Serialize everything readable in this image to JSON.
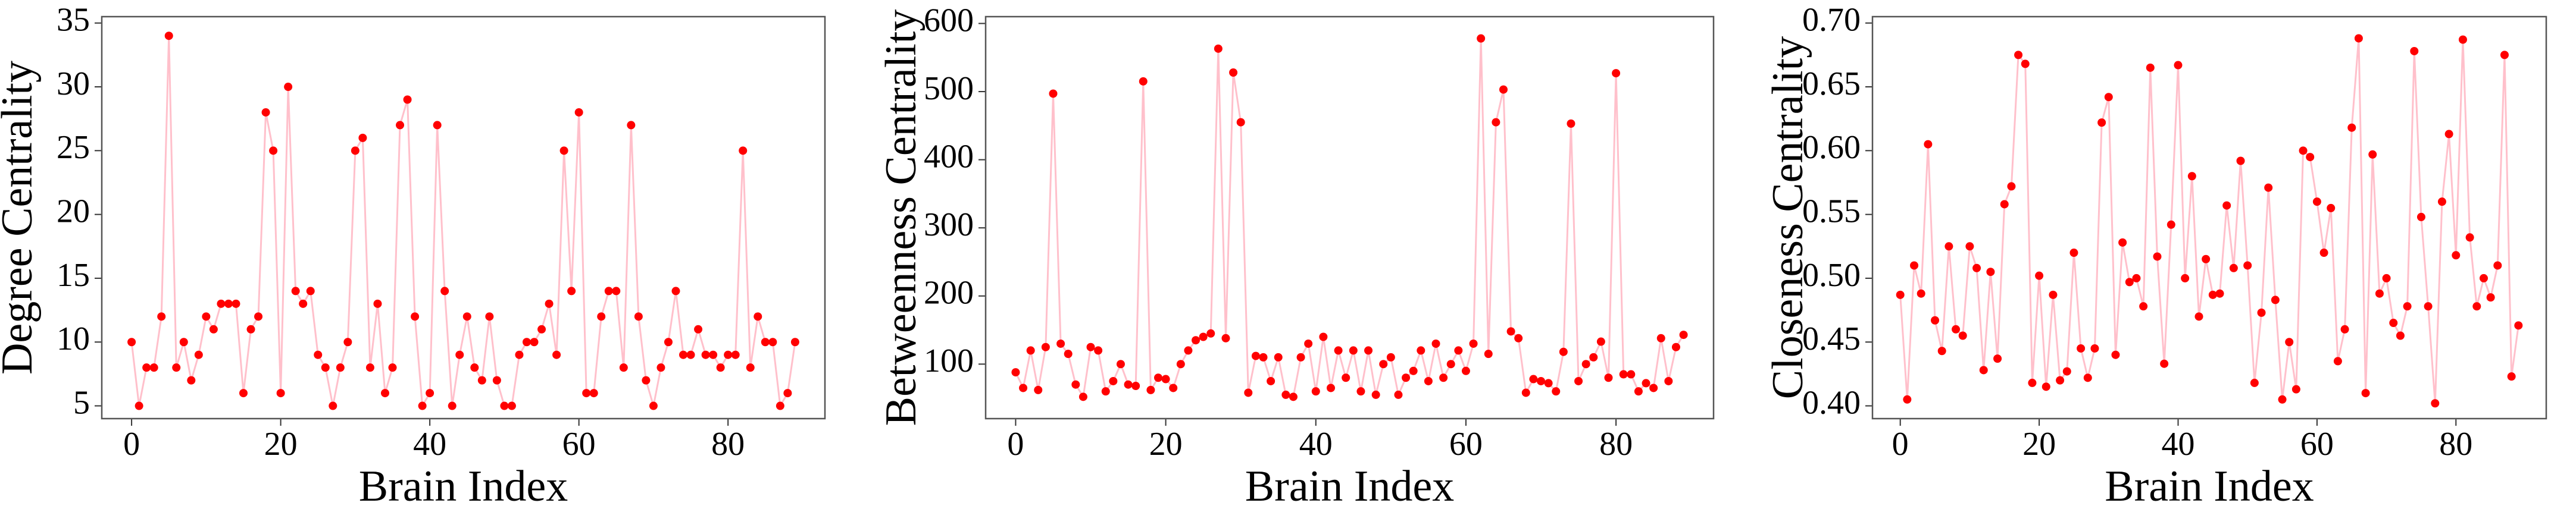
{
  "chart_data": [
    {
      "type": "line",
      "xlabel": "Brain Index",
      "ylabel": "Degree Centrality",
      "color": "#ffc0cb",
      "marker_color": "#ff0000",
      "x": [
        0,
        1,
        2,
        3,
        4,
        5,
        6,
        7,
        8,
        9,
        10,
        11,
        12,
        13,
        14,
        15,
        16,
        17,
        18,
        19,
        20,
        21,
        22,
        23,
        24,
        25,
        26,
        27,
        28,
        29,
        30,
        31,
        32,
        33,
        34,
        35,
        36,
        37,
        38,
        39,
        40,
        41,
        42,
        43,
        44,
        45,
        46,
        47,
        48,
        49,
        50,
        51,
        52,
        53,
        54,
        55,
        56,
        57,
        58,
        59,
        60,
        61,
        62,
        63,
        64,
        65,
        66,
        67,
        68,
        69,
        70,
        71,
        72,
        73,
        74,
        75,
        76,
        77,
        78,
        79,
        80,
        81,
        82,
        83,
        84,
        85,
        86,
        87,
        88,
        89
      ],
      "values": [
        10,
        5,
        8,
        8,
        12,
        34,
        8,
        10,
        7,
        9,
        12,
        11,
        13,
        13,
        13,
        6,
        11,
        12,
        28,
        25,
        6,
        30,
        14,
        13,
        14,
        9,
        8,
        5,
        8,
        10,
        25,
        26,
        8,
        13,
        6,
        8,
        27,
        29,
        12,
        5,
        6,
        27,
        14,
        5,
        9,
        12,
        8,
        7,
        12,
        7,
        5,
        5,
        9,
        10,
        10,
        11,
        13,
        9,
        25,
        14,
        28,
        6,
        6,
        12,
        14,
        14,
        8,
        27,
        12,
        7,
        5,
        8,
        10,
        14,
        9,
        9,
        11,
        9,
        9,
        8,
        9,
        9,
        25,
        8,
        12,
        10,
        10,
        5,
        6,
        10
      ],
      "xlim": [
        -4,
        93
      ],
      "xticks": [
        0,
        20,
        40,
        60,
        80
      ],
      "ylim": [
        4,
        35.5
      ],
      "yticks": [
        5,
        10,
        15,
        20,
        25,
        30,
        35
      ]
    },
    {
      "type": "line",
      "xlabel": "Brain Index",
      "ylabel": "Betweenness Centrality",
      "color": "#ffc0cb",
      "marker_color": "#ff0000",
      "x": [
        0,
        1,
        2,
        3,
        4,
        5,
        6,
        7,
        8,
        9,
        10,
        11,
        12,
        13,
        14,
        15,
        16,
        17,
        18,
        19,
        20,
        21,
        22,
        23,
        24,
        25,
        26,
        27,
        28,
        29,
        30,
        31,
        32,
        33,
        34,
        35,
        36,
        37,
        38,
        39,
        40,
        41,
        42,
        43,
        44,
        45,
        46,
        47,
        48,
        49,
        50,
        51,
        52,
        53,
        54,
        55,
        56,
        57,
        58,
        59,
        60,
        61,
        62,
        63,
        64,
        65,
        66,
        67,
        68,
        69,
        70,
        71,
        72,
        73,
        74,
        75,
        76,
        77,
        78,
        79,
        80,
        81,
        82,
        83,
        84,
        85,
        86,
        87,
        88,
        89
      ],
      "values": [
        88,
        65,
        120,
        62,
        125,
        497,
        130,
        115,
        70,
        52,
        125,
        120,
        60,
        75,
        100,
        70,
        68,
        515,
        62,
        80,
        78,
        65,
        100,
        120,
        135,
        140,
        145,
        563,
        138,
        528,
        455,
        58,
        112,
        110,
        75,
        110,
        55,
        52,
        110,
        130,
        60,
        140,
        65,
        120,
        80,
        120,
        60,
        120,
        55,
        100,
        110,
        55,
        80,
        90,
        120,
        75,
        130,
        80,
        100,
        120,
        90,
        130,
        578,
        115,
        455,
        503,
        148,
        138,
        58,
        78,
        75,
        72,
        60,
        118,
        453,
        75,
        100,
        110,
        133,
        80,
        527,
        85,
        85,
        60,
        72,
        65,
        138,
        75,
        125,
        143
      ],
      "xlim": [
        -4,
        93
      ],
      "xticks": [
        0,
        20,
        40,
        60,
        80
      ],
      "ylim": [
        20,
        610
      ],
      "yticks": [
        100,
        200,
        300,
        400,
        500,
        600
      ]
    },
    {
      "type": "line",
      "xlabel": "Brain Index",
      "ylabel": "Closeness Centrality",
      "color": "#ffc0cb",
      "marker_color": "#ff0000",
      "x": [
        0,
        1,
        2,
        3,
        4,
        5,
        6,
        7,
        8,
        9,
        10,
        11,
        12,
        13,
        14,
        15,
        16,
        17,
        18,
        19,
        20,
        21,
        22,
        23,
        24,
        25,
        26,
        27,
        28,
        29,
        30,
        31,
        32,
        33,
        34,
        35,
        36,
        37,
        38,
        39,
        40,
        41,
        42,
        43,
        44,
        45,
        46,
        47,
        48,
        49,
        50,
        51,
        52,
        53,
        54,
        55,
        56,
        57,
        58,
        59,
        60,
        61,
        62,
        63,
        64,
        65,
        66,
        67,
        68,
        69,
        70,
        71,
        72,
        73,
        74,
        75,
        76,
        77,
        78,
        79,
        80,
        81,
        82,
        83,
        84,
        85,
        86,
        87,
        88,
        89
      ],
      "values": [
        0.487,
        0.405,
        0.51,
        0.488,
        0.605,
        0.467,
        0.443,
        0.525,
        0.46,
        0.455,
        0.525,
        0.508,
        0.428,
        0.505,
        0.437,
        0.558,
        0.572,
        0.675,
        0.668,
        0.418,
        0.502,
        0.415,
        0.487,
        0.42,
        0.427,
        0.52,
        0.445,
        0.422,
        0.445,
        0.622,
        0.642,
        0.44,
        0.528,
        0.497,
        0.5,
        0.478,
        0.665,
        0.517,
        0.433,
        0.542,
        0.667,
        0.5,
        0.58,
        0.47,
        0.515,
        0.487,
        0.488,
        0.557,
        0.508,
        0.592,
        0.51,
        0.418,
        0.473,
        0.571,
        0.483,
        0.405,
        0.45,
        0.413,
        0.6,
        0.595,
        0.56,
        0.52,
        0.555,
        0.435,
        0.46,
        0.618,
        0.688,
        0.41,
        0.597,
        0.488,
        0.5,
        0.465,
        0.455,
        0.478,
        0.678,
        0.548,
        0.478,
        0.402,
        0.56,
        0.613,
        0.518,
        0.687,
        0.532,
        0.478,
        0.5,
        0.485,
        0.51,
        0.675,
        0.423,
        0.463
      ],
      "xlim": [
        -4,
        93
      ],
      "xticks": [
        0,
        20,
        40,
        60,
        80
      ],
      "ylim": [
        0.39,
        0.705
      ],
      "yticks": [
        {
          "value": 0.4,
          "label": "0.40"
        },
        0.45,
        {
          "value": 0.5,
          "label": "0.50"
        },
        0.55,
        {
          "value": 0.6,
          "label": "0.60"
        },
        0.65,
        {
          "value": 0.7,
          "label": "0.70"
        }
      ]
    }
  ]
}
